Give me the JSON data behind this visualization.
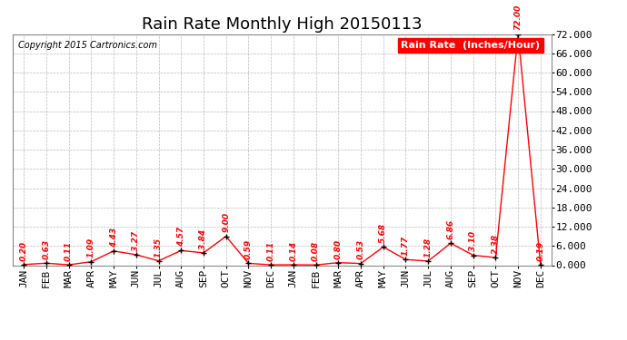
{
  "title": "Rain Rate Monthly High 20150113",
  "copyright": "Copyright 2015 Cartronics.com",
  "legend_label": "Rain Rate  (Inches/Hour)",
  "months": [
    "JAN",
    "FEB",
    "MAR",
    "APR",
    "MAY",
    "JUN",
    "JUL",
    "AUG",
    "SEP",
    "OCT",
    "NOV",
    "DEC",
    "JAN",
    "FEB",
    "MAR",
    "APR",
    "MAY",
    "JUN",
    "JUL",
    "AUG",
    "SEP",
    "OCT",
    "NOV",
    "DEC"
  ],
  "values": [
    0.2,
    0.63,
    0.11,
    1.09,
    4.43,
    3.27,
    1.35,
    4.57,
    3.84,
    9.0,
    0.59,
    0.11,
    0.14,
    0.08,
    0.8,
    0.53,
    5.68,
    1.77,
    1.28,
    6.86,
    3.1,
    2.38,
    72.0,
    0.19
  ],
  "line_color": "#FF0000",
  "marker_color": "#000000",
  "background_color": "#FFFFFF",
  "grid_color": "#BBBBBB",
  "title_fontsize": 13,
  "annotation_fontsize": 6.5,
  "tick_fontsize": 8,
  "ylim_min": 0.0,
  "ylim_max": 72.0,
  "yticks": [
    0.0,
    6.0,
    12.0,
    18.0,
    24.0,
    30.0,
    36.0,
    42.0,
    48.0,
    54.0,
    60.0,
    66.0,
    72.0
  ]
}
